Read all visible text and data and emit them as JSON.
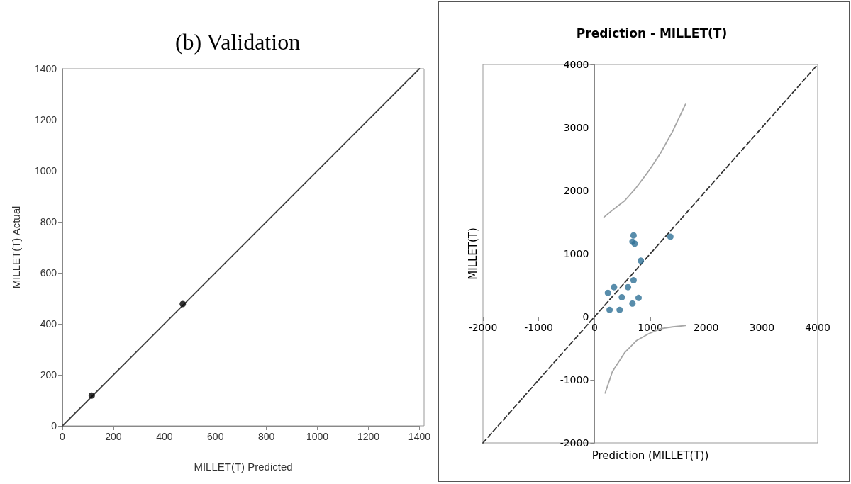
{
  "chart_data": [
    {
      "type": "scatter",
      "title": "(b) Validation",
      "xlabel": "MILLET(T) Predicted",
      "ylabel": "MILLET(T) Actual",
      "xlim": [
        0,
        1400
      ],
      "ylim": [
        0,
        1400
      ],
      "xticks": [
        0,
        200,
        400,
        600,
        800,
        1000,
        1200,
        1400
      ],
      "yticks": [
        0,
        200,
        400,
        600,
        800,
        1000,
        1200,
        1400
      ],
      "series": [
        {
          "type": "line",
          "color": "#404040",
          "marker": "none",
          "line_style": "solid",
          "x": [
            0,
            1400
          ],
          "values": [
            0,
            1400
          ]
        },
        {
          "type": "scatter",
          "color": "#000000",
          "marker": "circle",
          "x": [
            115,
            472
          ],
          "values": [
            119,
            478
          ]
        }
      ]
    },
    {
      "type": "scatter",
      "title": "Prediction - MILLET(T)",
      "xlabel": "Prediction (MILLET(T))",
      "ylabel": "MILLET(T)",
      "xlim": [
        -2000,
        4000
      ],
      "ylim": [
        -2000,
        4000
      ],
      "xticks": [
        -2000,
        -1000,
        0,
        1000,
        2000,
        3000,
        4000
      ],
      "yticks": [
        -2000,
        -1000,
        0,
        1000,
        2000,
        3000,
        4000
      ],
      "series": [
        {
          "type": "line",
          "color": "#333333",
          "marker": "none",
          "line_style": "dashed",
          "x": [
            -2000,
            4000
          ],
          "values": [
            -2000,
            4000
          ]
        },
        {
          "type": "line",
          "color": "#a6a6a6",
          "marker": "none",
          "line_style": "solid",
          "x": [
            170,
            320,
            540,
            750,
            970,
            1180,
            1400,
            1630
          ],
          "values": [
            1580,
            1690,
            1840,
            2050,
            2310,
            2590,
            2940,
            3370
          ]
        },
        {
          "type": "line",
          "color": "#a6a6a6",
          "marker": "none",
          "line_style": "solid",
          "x": [
            190,
            320,
            540,
            750,
            970,
            1180,
            1400,
            1630
          ],
          "values": [
            -1210,
            -870,
            -570,
            -380,
            -270,
            -190,
            -160,
            -140
          ]
        },
        {
          "type": "scatter",
          "color": "#2e7196",
          "marker": "circle",
          "x": [
            700,
            680,
            720,
            1360,
            830,
            700,
            350,
            240,
            600,
            490,
            790,
            680,
            270,
            450
          ],
          "values": [
            1290,
            1190,
            1160,
            1270,
            890,
            580,
            470,
            380,
            470,
            310,
            300,
            210,
            110,
            110
          ]
        }
      ]
    }
  ]
}
